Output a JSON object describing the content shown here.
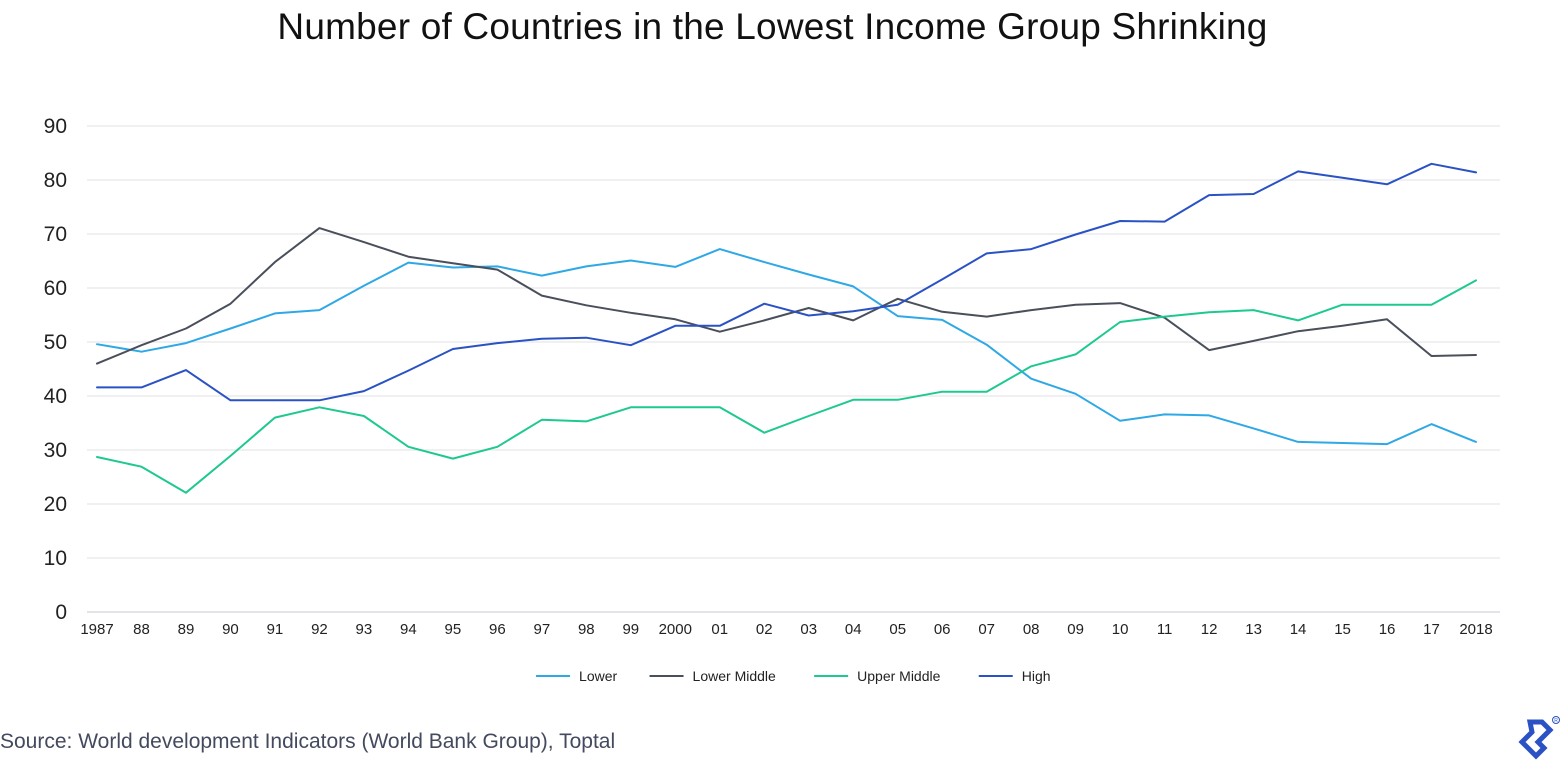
{
  "chart_data": {
    "type": "line",
    "title": "Number of Countries in the Lowest Income Group Shrinking",
    "xlabel": "",
    "ylabel": "",
    "ylim": [
      0,
      90
    ],
    "yticks": [
      "0",
      "10",
      "20",
      "30",
      "40",
      "50",
      "60",
      "70",
      "80",
      "90"
    ],
    "grid": "horizontal",
    "legend_position": "bottom-center",
    "categories": [
      "1987",
      "88",
      "89",
      "90",
      "91",
      "92",
      "93",
      "94",
      "95",
      "96",
      "97",
      "98",
      "99",
      "2000",
      "01",
      "02",
      "03",
      "04",
      "05",
      "06",
      "07",
      "08",
      "09",
      "10",
      "11",
      "12",
      "13",
      "14",
      "15",
      "16",
      "17",
      "2018"
    ],
    "series": [
      {
        "name": "Lower",
        "color": "#2fa8e6",
        "values": [
          49.6,
          48.2,
          49.8,
          52.5,
          55.3,
          55.9,
          60.4,
          64.7,
          63.8,
          64.0,
          62.3,
          64.0,
          65.1,
          63.9,
          67.2,
          64.8,
          62.5,
          60.3,
          54.8,
          54.1,
          49.5,
          43.2,
          40.4,
          35.4,
          36.6,
          36.4,
          34.0,
          31.5,
          31.3,
          31.1,
          34.8,
          31.5
        ]
      },
      {
        "name": "Lower Middle",
        "color": "#4a4f5c",
        "values": [
          46.0,
          49.4,
          52.5,
          57.1,
          64.8,
          71.1,
          68.5,
          65.8,
          64.6,
          63.4,
          58.6,
          56.8,
          55.4,
          54.2,
          51.9,
          54.0,
          56.3,
          54.0,
          58.0,
          55.6,
          54.7,
          55.9,
          56.9,
          57.2,
          54.5,
          48.5,
          50.2,
          52.0,
          53.0,
          54.2,
          47.4,
          47.6
        ]
      },
      {
        "name": "Upper Middle",
        "color": "#1ec98f",
        "values": [
          28.7,
          26.9,
          22.1,
          28.9,
          36.0,
          37.9,
          36.3,
          30.6,
          28.4,
          30.6,
          35.6,
          35.3,
          37.9,
          37.9,
          37.9,
          33.2,
          36.3,
          39.3,
          39.3,
          40.8,
          40.8,
          45.5,
          47.7,
          53.7,
          54.7,
          55.5,
          55.9,
          54.0,
          56.9,
          56.9,
          56.9,
          61.4
        ]
      },
      {
        "name": "High",
        "color": "#2a52c4",
        "values": [
          41.6,
          41.6,
          44.8,
          39.2,
          39.2,
          39.2,
          40.9,
          44.7,
          48.7,
          49.8,
          50.6,
          50.8,
          49.4,
          53.0,
          53.0,
          57.1,
          54.9,
          55.7,
          56.9,
          61.6,
          66.4,
          67.2,
          69.9,
          72.4,
          72.3,
          77.2,
          77.4,
          81.6,
          80.4,
          79.2,
          83.0,
          81.4
        ]
      }
    ]
  },
  "source": "Source: World development Indicators (World Bank Group), Toptal",
  "brand_color": "#2a52c4"
}
